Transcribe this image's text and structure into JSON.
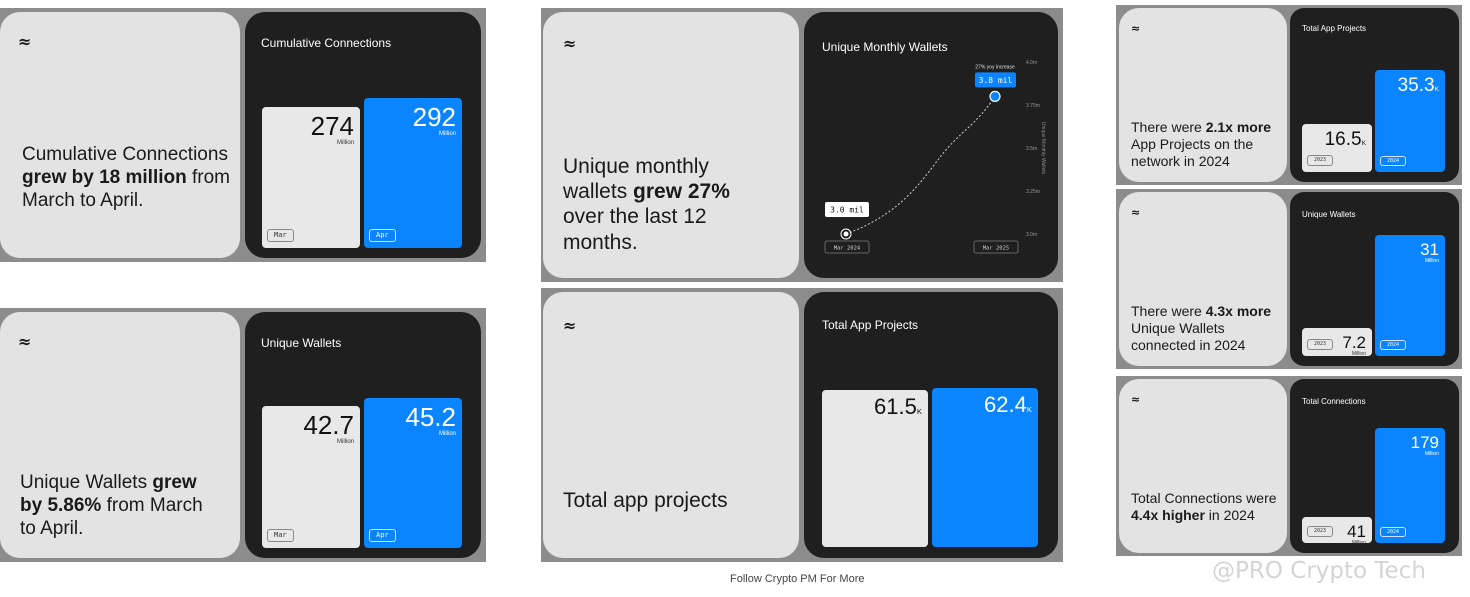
{
  "logo_glyph": "≈",
  "chart_data": [
    {
      "type": "bar",
      "title": "Cumulative Connections",
      "caption_parts": [
        "Cumulative Connections ",
        "grew by 18 million",
        " from March to April."
      ],
      "categories": [
        "Mar",
        "Apr"
      ],
      "values": [
        274,
        292
      ],
      "value_labels": [
        "274",
        "292"
      ],
      "unit": "Million",
      "suffix": ""
    },
    {
      "type": "bar",
      "title": "Unique Wallets",
      "caption_parts": [
        "Unique Wallets ",
        "grew by 5.86%",
        " from March to April."
      ],
      "categories": [
        "Mar",
        "Apr"
      ],
      "values": [
        42.7,
        45.2
      ],
      "value_labels": [
        "42.7",
        "45.2"
      ],
      "unit": "Million",
      "suffix": ""
    },
    {
      "type": "line",
      "title": "Unique Monthly Wallets",
      "caption_parts": [
        "Unique monthly wallets ",
        "grew 27%",
        " over the last 12 months."
      ],
      "x": [
        "Mar 2024",
        "Mar 2025"
      ],
      "values": [
        3.0,
        3.8
      ],
      "start_label": "3.0 mil",
      "end_label": "3.8 mil",
      "annotation": "27% yoy increase",
      "ylabel": "Unique Monthly Wallets",
      "y_ticks": [
        "4.0m",
        "3.75m",
        "3.5m",
        "3.25m",
        "3.0m"
      ]
    },
    {
      "type": "bar",
      "title": "Total App Projects",
      "caption_parts": [
        "Total app projects",
        "",
        ""
      ],
      "categories": [
        "",
        ""
      ],
      "values": [
        61.5,
        62.4
      ],
      "value_labels": [
        "61.5",
        "62.4"
      ],
      "unit": "",
      "suffix": "K"
    },
    {
      "type": "bar",
      "title": "Total App Projects",
      "caption_parts": [
        "There were ",
        "2.1x more",
        " App Projects on the network in 2024"
      ],
      "categories": [
        "2023",
        "2024"
      ],
      "values": [
        16.5,
        35.3
      ],
      "value_labels": [
        "16.5",
        "35.3"
      ],
      "unit": "",
      "suffix": "K"
    },
    {
      "type": "bar",
      "title": "Unique Wallets",
      "caption_parts": [
        "There were ",
        "4.3x more",
        " Unique Wallets connected in 2024"
      ],
      "categories": [
        "2023",
        "2024"
      ],
      "values": [
        7.2,
        31
      ],
      "value_labels": [
        "7.2",
        "31"
      ],
      "unit": "Million",
      "suffix": ""
    },
    {
      "type": "bar",
      "title": "Total Connections",
      "caption_parts": [
        "Total Connections were ",
        "4.4x higher",
        " in 2024"
      ],
      "categories": [
        "2023",
        "2024"
      ],
      "values": [
        41,
        179
      ],
      "value_labels": [
        "41",
        "179"
      ],
      "unit": "Million",
      "suffix": ""
    }
  ],
  "footer": "Follow Crypto PM For More",
  "watermark": "@PRO Crypto Tech"
}
